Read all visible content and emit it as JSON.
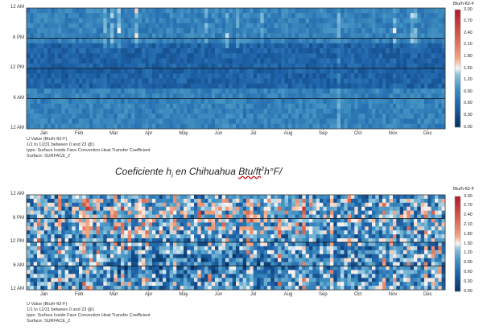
{
  "chart_data": [
    {
      "type": "heatmap",
      "title": "",
      "y_ticks": [
        "12 AM",
        "6 PM",
        "12 PM",
        "6 AM",
        "12 AM"
      ],
      "x_ticks": [
        "Jan",
        "Feb",
        "Mar",
        "Apr",
        "May",
        "Jun",
        "Jul",
        "Aug",
        "Sep",
        "Oct",
        "Nov",
        "Dec"
      ],
      "colorbar": {
        "title": "Btu/h-ft2-F",
        "ticks": [
          "3.00",
          "2.70",
          "2.40",
          "2.10",
          "1.80",
          "1.50",
          "1.20",
          "0.90",
          "0.60",
          "0.30",
          "0.00"
        ],
        "range": [
          0,
          3.0
        ]
      },
      "value_summary": {
        "typical_min": 0.4,
        "typical_max": 1.3,
        "peak_max": 2.0
      },
      "caption": [
        "U Value (Btu/h-ft2-F)",
        "1/1 to 12/31 between 0 and 23 @1",
        "type: Surface Inside Face Convection Heat Transfer Coefficient",
        "Surface: SURFACE_2"
      ]
    },
    {
      "type": "heatmap",
      "title": "",
      "y_ticks": [
        "12 AM",
        "6 PM",
        "12 PM",
        "6 AM",
        "12 AM"
      ],
      "x_ticks": [
        "Jan",
        "Feb",
        "Mar",
        "Apr",
        "May",
        "Jun",
        "Jul",
        "Aug",
        "Sep",
        "Oct",
        "Nov",
        "Dec"
      ],
      "colorbar": {
        "title": "Btu/h-ft2-F",
        "ticks": [
          "3.00",
          "2.70",
          "2.40",
          "2.10",
          "1.80",
          "1.50",
          "1.20",
          "0.90",
          "0.60",
          "0.30",
          "0.00"
        ],
        "range": [
          0,
          3.0
        ]
      },
      "value_summary": {
        "typical_min": 0.1,
        "typical_max": 2.4,
        "peak_max": 3.0
      },
      "caption": [
        "U Value (Btu/h-ft2-F)",
        "1/1 to 12/31 between 0 and 23 @1",
        "type: Surface Inside Face Convection Heat Transfer Coefficient",
        "Surface: SURFACE_2"
      ]
    }
  ],
  "middle_title": {
    "prefix": "Coeficiente h",
    "sub": "i",
    "mid": " en Chihuahua ",
    "unit_a": "Btu/ft",
    "sup": "2",
    "unit_b": "h°F",
    "bar": "/"
  },
  "colors": {
    "dark_blue": "#053061",
    "mid_blue": "#2166ac",
    "light_blue": "#4393c3",
    "pale_blue": "#92c5de",
    "white": "#f7f7f7",
    "pale_red": "#f4a582",
    "red": "#d6604d",
    "dark_red": "#b2182b"
  }
}
